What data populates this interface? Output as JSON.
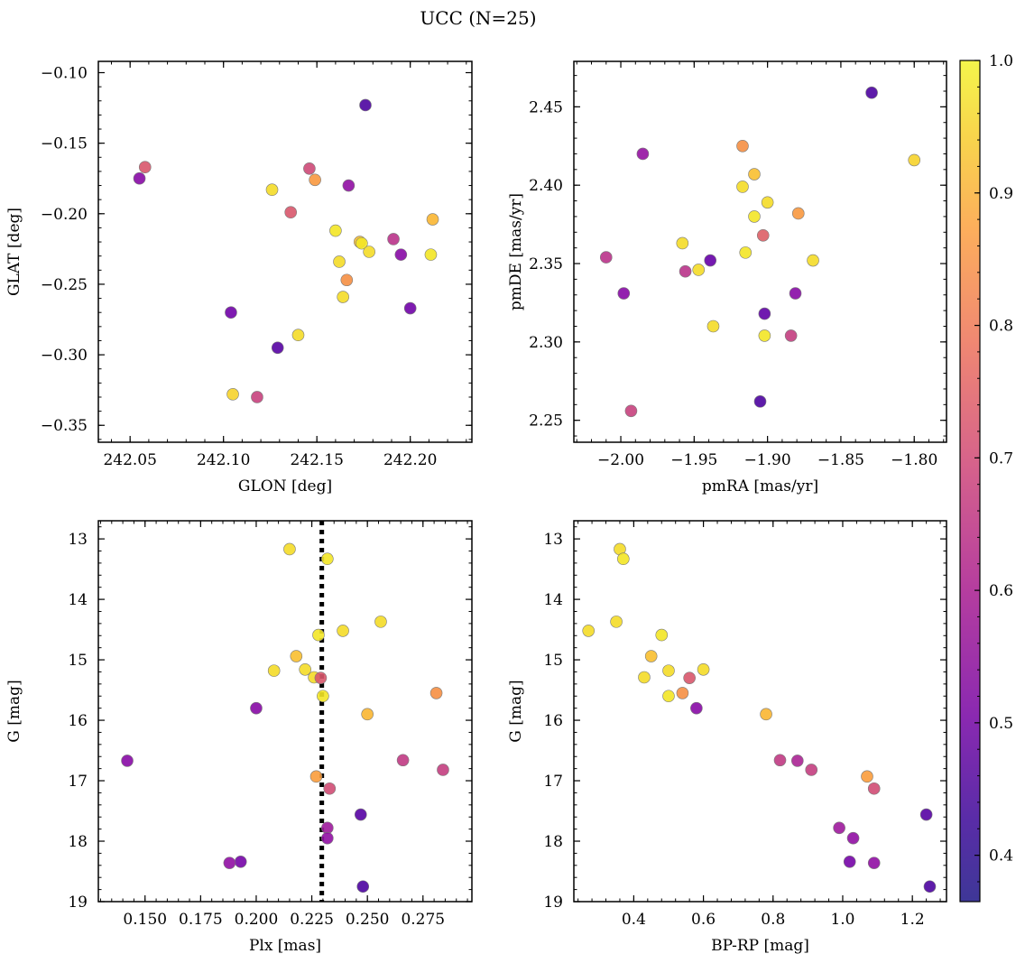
{
  "title": "UCC (N=25)",
  "colorbar": {
    "colormap": "plasma",
    "range": [
      0.365,
      1.0
    ],
    "ticks": [
      0.4,
      0.5,
      0.6,
      0.7,
      0.8,
      0.9,
      1.0
    ],
    "tick_labels": [
      "0.4",
      "0.5",
      "0.6",
      "0.7",
      "0.8",
      "0.9",
      "1.0"
    ]
  },
  "chart_data": [
    {
      "type": "scatter",
      "xlabel": "GLON [deg]",
      "ylabel": "GLAT [deg]",
      "xlim": [
        242.033,
        242.233
      ],
      "ylim": [
        -0.362,
        -0.092
      ],
      "xticks": [
        242.05,
        242.1,
        242.15,
        242.2
      ],
      "xtick_labels": [
        "242.05",
        "242.10",
        "242.15",
        "242.20"
      ],
      "yticks": [
        -0.35,
        -0.3,
        -0.25,
        -0.2,
        -0.15,
        -0.1
      ],
      "ytick_labels": [
        "−0.35",
        "−0.30",
        "−0.25",
        "−0.20",
        "−0.15",
        "−0.10"
      ],
      "points": [
        {
          "x": 242.176,
          "y": -0.123,
          "c": 0.38
        },
        {
          "x": 242.058,
          "y": -0.167,
          "c": 0.72
        },
        {
          "x": 242.055,
          "y": -0.175,
          "c": 0.5
        },
        {
          "x": 242.146,
          "y": -0.168,
          "c": 0.68
        },
        {
          "x": 242.149,
          "y": -0.176,
          "c": 0.88
        },
        {
          "x": 242.167,
          "y": -0.18,
          "c": 0.52
        },
        {
          "x": 242.126,
          "y": -0.183,
          "c": 0.97
        },
        {
          "x": 242.136,
          "y": -0.199,
          "c": 0.72
        },
        {
          "x": 242.212,
          "y": -0.204,
          "c": 0.93
        },
        {
          "x": 242.16,
          "y": -0.212,
          "c": 0.98
        },
        {
          "x": 242.191,
          "y": -0.218,
          "c": 0.62
        },
        {
          "x": 242.173,
          "y": -0.22,
          "c": 0.94
        },
        {
          "x": 242.174,
          "y": -0.221,
          "c": 0.98
        },
        {
          "x": 242.178,
          "y": -0.227,
          "c": 0.97
        },
        {
          "x": 242.195,
          "y": -0.229,
          "c": 0.5
        },
        {
          "x": 242.211,
          "y": -0.229,
          "c": 0.98
        },
        {
          "x": 242.162,
          "y": -0.234,
          "c": 0.97
        },
        {
          "x": 242.166,
          "y": -0.247,
          "c": 0.86
        },
        {
          "x": 242.164,
          "y": -0.259,
          "c": 0.97
        },
        {
          "x": 242.2,
          "y": -0.267,
          "c": 0.45
        },
        {
          "x": 242.104,
          "y": -0.27,
          "c": 0.45
        },
        {
          "x": 242.14,
          "y": -0.286,
          "c": 0.97
        },
        {
          "x": 242.129,
          "y": -0.295,
          "c": 0.4
        },
        {
          "x": 242.105,
          "y": -0.328,
          "c": 0.96
        },
        {
          "x": 242.118,
          "y": -0.33,
          "c": 0.66
        }
      ]
    },
    {
      "type": "scatter",
      "xlabel": "pmRA [mas/yr]",
      "ylabel": "pmDE [mas/yr]",
      "xlim": [
        -2.032,
        -1.778
      ],
      "ylim": [
        2.236,
        2.479
      ],
      "xticks": [
        -2.0,
        -1.95,
        -1.9,
        -1.85,
        -1.8
      ],
      "xtick_labels": [
        "−2.00",
        "−1.95",
        "−1.90",
        "−1.85",
        "−1.80"
      ],
      "yticks": [
        2.25,
        2.3,
        2.35,
        2.4,
        2.45
      ],
      "ytick_labels": [
        "2.25",
        "2.30",
        "2.35",
        "2.40",
        "2.45"
      ],
      "points": [
        {
          "x": -1.829,
          "y": 2.459,
          "c": 0.38
        },
        {
          "x": -1.917,
          "y": 2.425,
          "c": 0.86
        },
        {
          "x": -1.985,
          "y": 2.42,
          "c": 0.53
        },
        {
          "x": -1.8,
          "y": 2.416,
          "c": 0.96
        },
        {
          "x": -1.909,
          "y": 2.407,
          "c": 0.94
        },
        {
          "x": -1.917,
          "y": 2.399,
          "c": 0.97
        },
        {
          "x": -1.9,
          "y": 2.389,
          "c": 0.97
        },
        {
          "x": -1.879,
          "y": 2.382,
          "c": 0.88
        },
        {
          "x": -1.909,
          "y": 2.38,
          "c": 0.98
        },
        {
          "x": -1.903,
          "y": 2.368,
          "c": 0.74
        },
        {
          "x": -1.958,
          "y": 2.363,
          "c": 0.97
        },
        {
          "x": -1.915,
          "y": 2.357,
          "c": 0.98
        },
        {
          "x": -2.01,
          "y": 2.354,
          "c": 0.62
        },
        {
          "x": -1.869,
          "y": 2.352,
          "c": 0.97
        },
        {
          "x": -1.939,
          "y": 2.352,
          "c": 0.43
        },
        {
          "x": -1.947,
          "y": 2.346,
          "c": 0.97
        },
        {
          "x": -1.956,
          "y": 2.345,
          "c": 0.62
        },
        {
          "x": -1.998,
          "y": 2.331,
          "c": 0.5
        },
        {
          "x": -1.881,
          "y": 2.331,
          "c": 0.5
        },
        {
          "x": -1.902,
          "y": 2.318,
          "c": 0.42
        },
        {
          "x": -1.937,
          "y": 2.31,
          "c": 0.97
        },
        {
          "x": -1.902,
          "y": 2.304,
          "c": 0.98
        },
        {
          "x": -1.884,
          "y": 2.304,
          "c": 0.65
        },
        {
          "x": -1.905,
          "y": 2.262,
          "c": 0.38
        },
        {
          "x": -1.993,
          "y": 2.256,
          "c": 0.66
        }
      ]
    },
    {
      "type": "scatter",
      "xlabel": "Plx [mas]",
      "ylabel": "G [mag]",
      "xlim": [
        0.129,
        0.297
      ],
      "ylim": [
        19.0,
        12.7
      ],
      "xticks": [
        0.15,
        0.175,
        0.2,
        0.225,
        0.25,
        0.275
      ],
      "xtick_labels": [
        "0.150",
        "0.175",
        "0.200",
        "0.225",
        "0.250",
        "0.275"
      ],
      "yticks": [
        13,
        14,
        15,
        16,
        17,
        18,
        19
      ],
      "ytick_labels": [
        "13",
        "14",
        "15",
        "16",
        "17",
        "18",
        "19"
      ],
      "vline": 0.2295,
      "points": [
        {
          "x": 0.215,
          "y": 13.17,
          "c": 0.97
        },
        {
          "x": 0.232,
          "y": 13.33,
          "c": 0.98
        },
        {
          "x": 0.256,
          "y": 14.37,
          "c": 0.97
        },
        {
          "x": 0.239,
          "y": 14.52,
          "c": 0.97
        },
        {
          "x": 0.228,
          "y": 14.59,
          "c": 0.98
        },
        {
          "x": 0.218,
          "y": 14.94,
          "c": 0.94
        },
        {
          "x": 0.222,
          "y": 15.16,
          "c": 0.97
        },
        {
          "x": 0.208,
          "y": 15.18,
          "c": 0.97
        },
        {
          "x": 0.226,
          "y": 15.29,
          "c": 0.97
        },
        {
          "x": 0.229,
          "y": 15.3,
          "c": 0.72
        },
        {
          "x": 0.281,
          "y": 15.55,
          "c": 0.86
        },
        {
          "x": 0.23,
          "y": 15.6,
          "c": 0.98
        },
        {
          "x": 0.2,
          "y": 15.8,
          "c": 0.5
        },
        {
          "x": 0.25,
          "y": 15.9,
          "c": 0.93
        },
        {
          "x": 0.142,
          "y": 16.67,
          "c": 0.5
        },
        {
          "x": 0.266,
          "y": 16.66,
          "c": 0.64
        },
        {
          "x": 0.284,
          "y": 16.82,
          "c": 0.65
        },
        {
          "x": 0.227,
          "y": 16.93,
          "c": 0.89
        },
        {
          "x": 0.233,
          "y": 17.13,
          "c": 0.69
        },
        {
          "x": 0.247,
          "y": 17.56,
          "c": 0.4
        },
        {
          "x": 0.232,
          "y": 17.78,
          "c": 0.55
        },
        {
          "x": 0.232,
          "y": 17.95,
          "c": 0.52
        },
        {
          "x": 0.193,
          "y": 18.34,
          "c": 0.46
        },
        {
          "x": 0.188,
          "y": 18.36,
          "c": 0.52
        },
        {
          "x": 0.248,
          "y": 18.75,
          "c": 0.38
        }
      ]
    },
    {
      "type": "scatter",
      "xlabel": "BP-RP [mag]",
      "ylabel": "G [mag]",
      "xlim": [
        0.228,
        1.298
      ],
      "ylim": [
        19.0,
        12.7
      ],
      "xticks": [
        0.4,
        0.6,
        0.8,
        1.0,
        1.2
      ],
      "xtick_labels": [
        "0.4",
        "0.6",
        "0.8",
        "1.0",
        "1.2"
      ],
      "yticks": [
        13,
        14,
        15,
        16,
        17,
        18,
        19
      ],
      "ytick_labels": [
        "13",
        "14",
        "15",
        "16",
        "17",
        "18",
        "19"
      ],
      "points": [
        {
          "x": 0.36,
          "y": 13.17,
          "c": 0.97
        },
        {
          "x": 0.37,
          "y": 13.33,
          "c": 0.98
        },
        {
          "x": 0.35,
          "y": 14.37,
          "c": 0.97
        },
        {
          "x": 0.27,
          "y": 14.52,
          "c": 0.97
        },
        {
          "x": 0.48,
          "y": 14.59,
          "c": 0.98
        },
        {
          "x": 0.45,
          "y": 14.94,
          "c": 0.94
        },
        {
          "x": 0.6,
          "y": 15.16,
          "c": 0.97
        },
        {
          "x": 0.5,
          "y": 15.18,
          "c": 0.97
        },
        {
          "x": 0.43,
          "y": 15.29,
          "c": 0.97
        },
        {
          "x": 0.56,
          "y": 15.3,
          "c": 0.72
        },
        {
          "x": 0.54,
          "y": 15.55,
          "c": 0.86
        },
        {
          "x": 0.5,
          "y": 15.6,
          "c": 0.98
        },
        {
          "x": 0.58,
          "y": 15.8,
          "c": 0.5
        },
        {
          "x": 0.78,
          "y": 15.9,
          "c": 0.93
        },
        {
          "x": 0.82,
          "y": 16.66,
          "c": 0.64
        },
        {
          "x": 0.87,
          "y": 16.67,
          "c": 0.58
        },
        {
          "x": 0.91,
          "y": 16.82,
          "c": 0.65
        },
        {
          "x": 1.07,
          "y": 16.93,
          "c": 0.89
        },
        {
          "x": 1.09,
          "y": 17.13,
          "c": 0.69
        },
        {
          "x": 1.24,
          "y": 17.56,
          "c": 0.4
        },
        {
          "x": 0.99,
          "y": 17.78,
          "c": 0.55
        },
        {
          "x": 1.03,
          "y": 17.95,
          "c": 0.52
        },
        {
          "x": 1.02,
          "y": 18.34,
          "c": 0.46
        },
        {
          "x": 1.09,
          "y": 18.36,
          "c": 0.52
        },
        {
          "x": 1.25,
          "y": 18.75,
          "c": 0.38
        }
      ]
    }
  ]
}
